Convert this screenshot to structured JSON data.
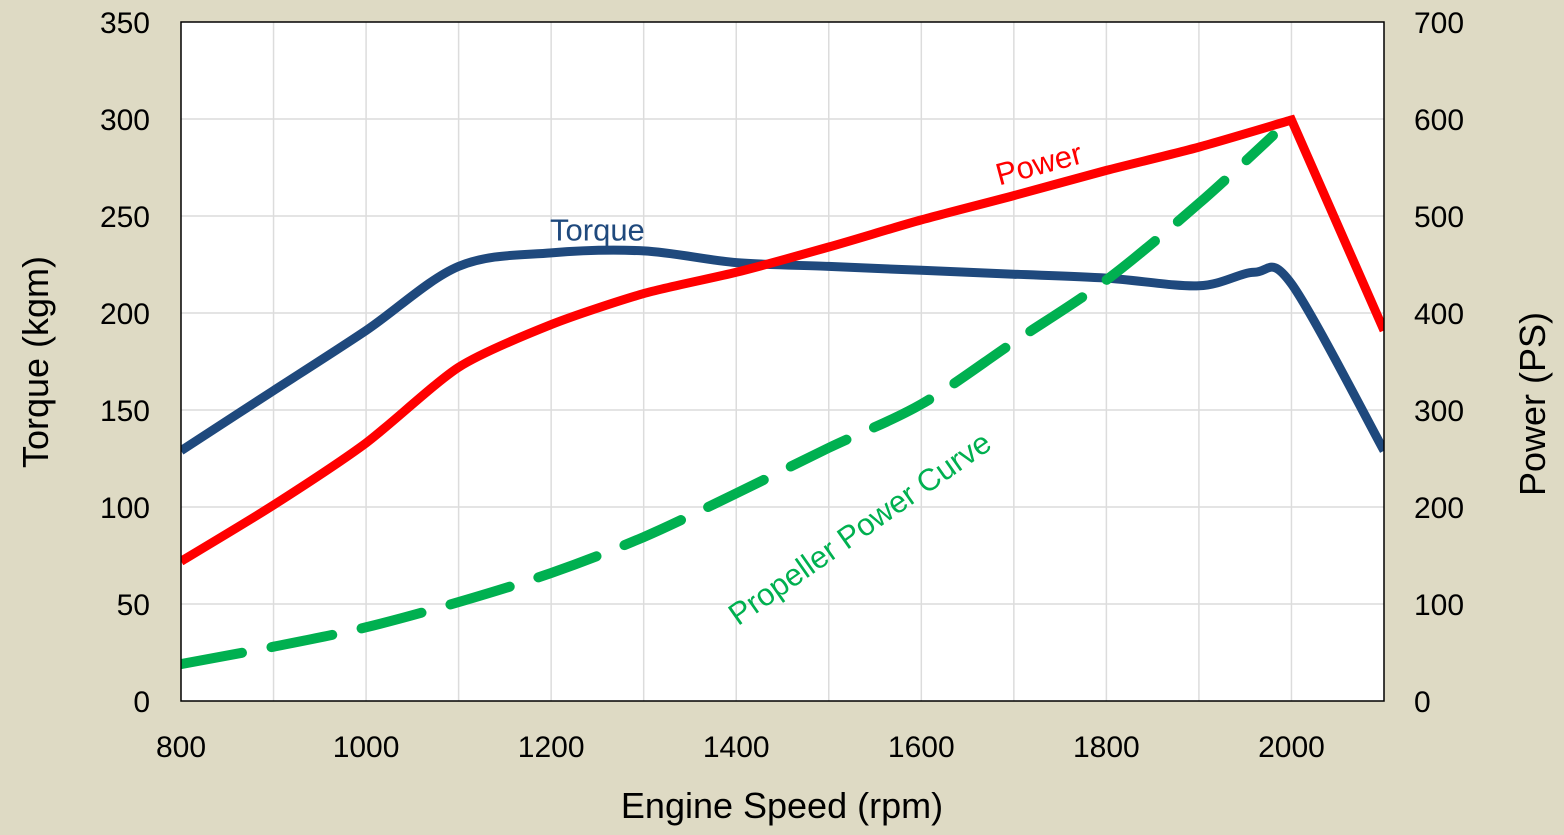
{
  "chart_data": {
    "type": "line",
    "title": "",
    "xlabel": "Engine Speed (rpm)",
    "ylabel_left": "Torque (kgm)",
    "ylabel_right": "Power (PS)",
    "xlim": [
      800,
      2100
    ],
    "ylim_left": [
      0,
      350
    ],
    "ylim_right": [
      0,
      700
    ],
    "xticks": [
      800,
      1000,
      1200,
      1400,
      1600,
      1800,
      2000
    ],
    "yticks_left": [
      0,
      50,
      100,
      150,
      200,
      250,
      300,
      350
    ],
    "yticks_right": [
      0,
      100,
      200,
      300,
      400,
      500,
      600,
      700
    ],
    "grid": true,
    "legend": "none (inline labels)",
    "series": [
      {
        "name": "Torque",
        "axis": "left",
        "color": "#1f497d",
        "style": "solid",
        "x": [
          800,
          900,
          1000,
          1100,
          1200,
          1300,
          1400,
          1500,
          1600,
          1700,
          1800,
          1900,
          1960,
          2000,
          2100
        ],
        "values": [
          129,
          160,
          191,
          224,
          231,
          232,
          226,
          224,
          222,
          220,
          218,
          214,
          221,
          215,
          129
        ]
      },
      {
        "name": "Power",
        "axis": "right",
        "color": "#ff0000",
        "style": "solid",
        "x": [
          800,
          900,
          1000,
          1100,
          1200,
          1300,
          1400,
          1500,
          1600,
          1700,
          1800,
          1900,
          2000,
          2100
        ],
        "values": [
          144,
          202,
          266,
          344,
          388,
          420,
          442,
          468,
          496,
          521,
          547,
          571,
          599,
          382
        ]
      },
      {
        "name": "Propeller Power Curve",
        "axis": "right",
        "color": "#00b050",
        "style": "dashed",
        "x": [
          800,
          900,
          1000,
          1100,
          1200,
          1300,
          1400,
          1500,
          1600,
          1700,
          1800,
          1900,
          1980
        ],
        "values": [
          38,
          56,
          76,
          102,
          132,
          169,
          214,
          261,
          306,
          370,
          434,
          513,
          583
        ]
      }
    ],
    "annotations": [
      {
        "text": "Torque",
        "series": "Torque",
        "x": 1250,
        "y_left": 255
      },
      {
        "text": "Power",
        "series": "Power",
        "x": 1730,
        "y_right": 570
      },
      {
        "text": "Propeller Power Curve",
        "series": "Propeller Power Curve",
        "x": 1540,
        "y_right": 200
      }
    ]
  }
}
